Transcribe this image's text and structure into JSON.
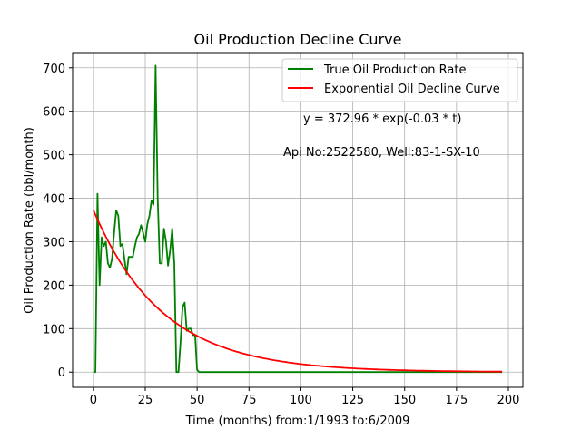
{
  "chart_data": {
    "type": "line",
    "title": "Oil Production Decline Curve",
    "xlabel": "Time (months) from:1/1993 to:6/2009",
    "ylabel": "Oil Production Rate (bbl/month)",
    "xlim": [
      -10,
      207
    ],
    "ylim": [
      -35,
      735
    ],
    "xticks": [
      0,
      25,
      50,
      75,
      100,
      125,
      150,
      175,
      200
    ],
    "yticks": [
      0,
      100,
      200,
      300,
      400,
      500,
      600,
      700
    ],
    "grid": true,
    "legend_position": "top-right",
    "annotations": [
      "y = 372.96 * exp(-0.03 * t)",
      "Api No:2522580, Well:83-1-SX-10"
    ],
    "series": [
      {
        "name": "True Oil Production Rate",
        "color": "#008000",
        "x": [
          0,
          1,
          2,
          3,
          4,
          5,
          6,
          7,
          8,
          9,
          10,
          11,
          12,
          13,
          14,
          15,
          16,
          17,
          18,
          19,
          20,
          21,
          22,
          23,
          24,
          25,
          26,
          27,
          28,
          29,
          30,
          31,
          32,
          33,
          34,
          35,
          36,
          37,
          38,
          39,
          40,
          41,
          42,
          43,
          44,
          45,
          46,
          47,
          48,
          49,
          50,
          51,
          52,
          60,
          80,
          100,
          120,
          140,
          160,
          180,
          197
        ],
        "y": [
          0,
          0,
          410,
          200,
          310,
          290,
          300,
          250,
          240,
          260,
          320,
          372,
          360,
          290,
          295,
          260,
          225,
          265,
          265,
          265,
          290,
          310,
          318,
          338,
          320,
          300,
          340,
          360,
          395,
          385,
          705,
          400,
          250,
          250,
          330,
          300,
          245,
          280,
          330,
          250,
          0,
          0,
          70,
          150,
          160,
          95,
          100,
          100,
          85,
          85,
          5,
          0,
          0,
          0,
          0,
          0,
          0,
          0,
          0,
          0,
          0
        ]
      },
      {
        "name": "Exponential Oil Decline Curve",
        "color": "#ff0000",
        "equation": {
          "a": 372.96,
          "b": 0.03
        },
        "x_range": [
          0,
          197
        ]
      }
    ]
  }
}
